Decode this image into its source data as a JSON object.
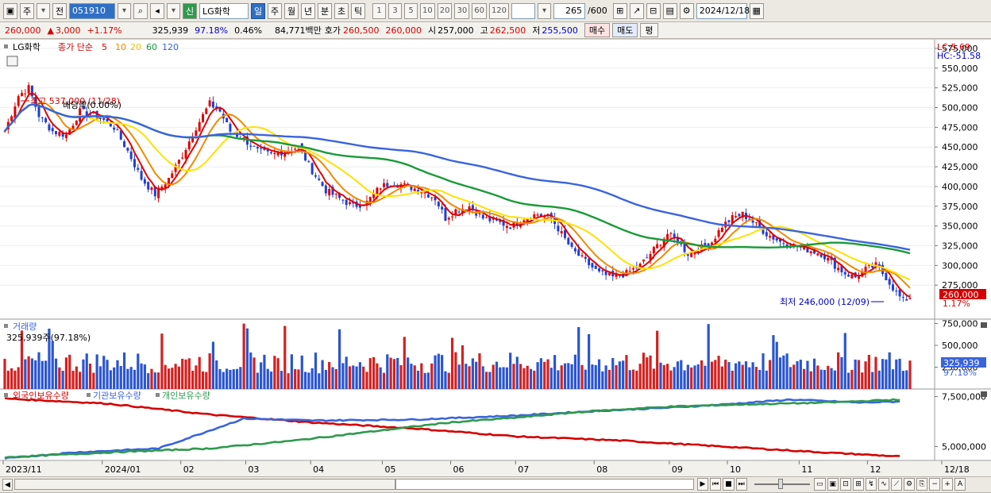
{
  "toolbar": {
    "market": "주",
    "prefix": "전",
    "code": "051910",
    "name": "LG화학",
    "badge": "신",
    "periods": [
      "일",
      "주",
      "월",
      "년",
      "분",
      "초",
      "틱"
    ],
    "intervals": [
      "1",
      "3",
      "5",
      "10",
      "20",
      "30",
      "60",
      "120"
    ],
    "count": "265",
    "count_total": "/600",
    "date": "2024/12/18"
  },
  "quote": {
    "price": "260,000",
    "change": "3,000",
    "change_pct": "+1.17%",
    "volume": "325,939",
    "vol_ratio": "97.18%",
    "turnover_pct": "0.46%",
    "amount": "84,771백만",
    "bid_label": "호가",
    "ask": "260,500",
    "bid": "260,000",
    "open_label": "시",
    "open": "257,000",
    "high_label": "고",
    "high": "262,500",
    "low_label": "저",
    "low": "255,500",
    "buy": "매수",
    "sell": "매도",
    "eval": "평"
  },
  "price_panel": {
    "stock_label": "LG화학",
    "ma_label": "종가 단순",
    "ma_periods": [
      "5",
      "10",
      "20",
      "60",
      "120"
    ],
    "ma_colors": [
      "#e10000",
      "#f08a00",
      "#ffe100",
      "#1a9a3a",
      "#3a64dc"
    ],
    "lc": "LC:5.69",
    "hc": "HC:-51.58",
    "high_note": "최고 537,000 (11/28)",
    "div_note": "배당락(0.00%)",
    "low_note": "최저 246,000 (12/09)",
    "last_price": "260,000",
    "last_pct": "1.17%"
  },
  "volume_panel": {
    "title": "거래량",
    "info": "325,939주(97.18%)",
    "last": "325,939",
    "last_pct": "97.18%"
  },
  "holdings_panel": {
    "titles": [
      "외국인보유수량",
      "기관보유수량",
      "개인보유수량"
    ],
    "colors": [
      "#d40000",
      "#3a64dc",
      "#2e9a4e"
    ]
  },
  "chart_data": {
    "type": "line",
    "price_axis": {
      "ticks": [
        575000,
        550000,
        525000,
        500000,
        475000,
        450000,
        425000,
        400000,
        375000,
        350000,
        325000,
        300000,
        275000
      ],
      "ylim": [
        232000,
        586000
      ]
    },
    "volume_axis": {
      "ticks": [
        750000,
        500000,
        250000
      ],
      "ylim": [
        0,
        800000
      ]
    },
    "holdings_axis": {
      "ticks": [
        7500000,
        5000000
      ]
    },
    "x_labels": [
      {
        "label": "2023/11",
        "day": 0
      },
      {
        "label": "2024/01",
        "day": 29
      },
      {
        "label": "02",
        "day": 52
      },
      {
        "label": "03",
        "day": 71
      },
      {
        "label": "04",
        "day": 90
      },
      {
        "label": "05",
        "day": 111
      },
      {
        "label": "06",
        "day": 131
      },
      {
        "label": "07",
        "day": 150
      },
      {
        "label": "08",
        "day": 173
      },
      {
        "label": "09",
        "day": 195
      },
      {
        "label": "10",
        "day": 212
      },
      {
        "label": "11",
        "day": 233
      },
      {
        "label": "12",
        "day": 253
      },
      {
        "label": "12/18",
        "day": 265
      }
    ],
    "close_anchors": [
      [
        0,
        470000
      ],
      [
        4,
        515000
      ],
      [
        7,
        525000
      ],
      [
        10,
        490000
      ],
      [
        14,
        470000
      ],
      [
        18,
        465000
      ],
      [
        22,
        495000
      ],
      [
        27,
        490000
      ],
      [
        32,
        475000
      ],
      [
        36,
        445000
      ],
      [
        40,
        410000
      ],
      [
        44,
        390000
      ],
      [
        48,
        410000
      ],
      [
        52,
        440000
      ],
      [
        56,
        475000
      ],
      [
        60,
        505000
      ],
      [
        63,
        495000
      ],
      [
        66,
        470000
      ],
      [
        70,
        460000
      ],
      [
        74,
        445000
      ],
      [
        78,
        440000
      ],
      [
        82,
        445000
      ],
      [
        86,
        450000
      ],
      [
        90,
        420000
      ],
      [
        94,
        395000
      ],
      [
        98,
        385000
      ],
      [
        102,
        375000
      ],
      [
        106,
        380000
      ],
      [
        110,
        400000
      ],
      [
        114,
        405000
      ],
      [
        118,
        400000
      ],
      [
        122,
        395000
      ],
      [
        126,
        385000
      ],
      [
        129,
        360000
      ],
      [
        132,
        370000
      ],
      [
        136,
        375000
      ],
      [
        140,
        360000
      ],
      [
        144,
        355000
      ],
      [
        148,
        350000
      ],
      [
        152,
        360000
      ],
      [
        156,
        365000
      ],
      [
        160,
        360000
      ],
      [
        163,
        340000
      ],
      [
        166,
        320000
      ],
      [
        170,
        305000
      ],
      [
        174,
        290000
      ],
      [
        178,
        285000
      ],
      [
        182,
        290000
      ],
      [
        186,
        300000
      ],
      [
        190,
        320000
      ],
      [
        194,
        340000
      ],
      [
        197,
        330000
      ],
      [
        200,
        315000
      ],
      [
        203,
        320000
      ],
      [
        207,
        330000
      ],
      [
        210,
        350000
      ],
      [
        213,
        360000
      ],
      [
        216,
        365000
      ],
      [
        219,
        355000
      ],
      [
        223,
        340000
      ],
      [
        227,
        330000
      ],
      [
        231,
        325000
      ],
      [
        235,
        320000
      ],
      [
        239,
        315000
      ],
      [
        243,
        300000
      ],
      [
        246,
        290000
      ],
      [
        249,
        285000
      ],
      [
        252,
        295000
      ],
      [
        255,
        300000
      ],
      [
        258,
        285000
      ],
      [
        261,
        265000
      ],
      [
        263,
        255000
      ],
      [
        265,
        260000
      ]
    ],
    "series": [
      {
        "name": "5",
        "color": "#e10000"
      },
      {
        "name": "10",
        "color": "#f08a00"
      },
      {
        "name": "20",
        "color": "#ffe100"
      },
      {
        "name": "60",
        "color": "#1a9a3a"
      },
      {
        "name": "120",
        "color": "#3a64dc"
      }
    ],
    "holdings_anchors": {
      "외국인보유수량": [
        [
          0,
          7400000
        ],
        [
          30,
          7150000
        ],
        [
          60,
          6600000
        ],
        [
          90,
          6200000
        ],
        [
          120,
          5900000
        ],
        [
          150,
          5500000
        ],
        [
          180,
          5300000
        ],
        [
          210,
          5000000
        ],
        [
          240,
          4700000
        ],
        [
          262,
          4500000
        ]
      ],
      "기관보유수량": [
        [
          0,
          4400000
        ],
        [
          20,
          4700000
        ],
        [
          45,
          4900000
        ],
        [
          60,
          5800000
        ],
        [
          70,
          6400000
        ],
        [
          90,
          6300000
        ],
        [
          120,
          6350000
        ],
        [
          150,
          6550000
        ],
        [
          170,
          6750000
        ],
        [
          195,
          6950000
        ],
        [
          210,
          7100000
        ],
        [
          230,
          7350000
        ],
        [
          250,
          7200000
        ],
        [
          262,
          7250000
        ]
      ],
      "개인보유수량": [
        [
          0,
          4450000
        ],
        [
          30,
          4700000
        ],
        [
          60,
          4900000
        ],
        [
          85,
          5300000
        ],
        [
          110,
          5800000
        ],
        [
          130,
          6200000
        ],
        [
          150,
          6450000
        ],
        [
          170,
          6750000
        ],
        [
          195,
          7000000
        ],
        [
          215,
          7100000
        ],
        [
          240,
          7200000
        ],
        [
          262,
          7350000
        ]
      ]
    }
  },
  "bottom": {
    "labels": [
      "▶",
      "⏮",
      "■",
      "⏭",
      "−",
      "+",
      "A"
    ]
  }
}
